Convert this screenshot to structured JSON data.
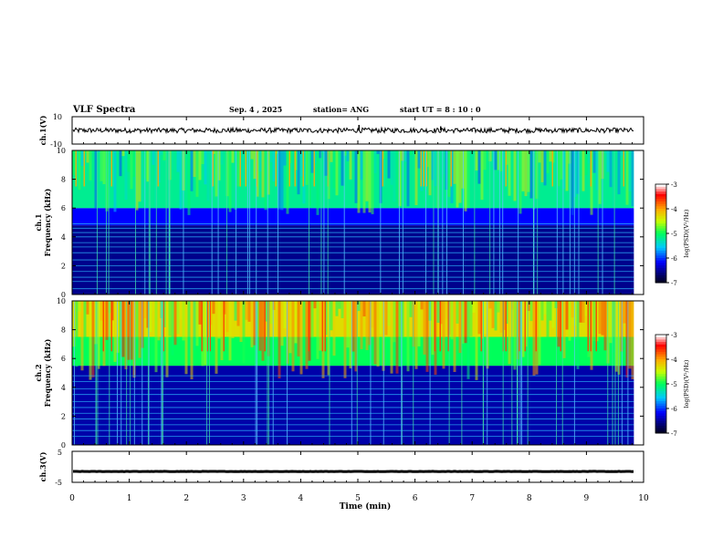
{
  "header": {
    "title": "VLF Spectra",
    "date": "Sep. 4 , 2025",
    "station": "station= ANG",
    "start_ut": "start UT =  8 : 10 : 0"
  },
  "colorbar": {
    "label": "log(PSD)(V²/Hz)",
    "ticks": [
      "-3",
      "-4",
      "-5",
      "-6",
      "-7"
    ],
    "colors": [
      "#ffffff",
      "#ff0000",
      "#ffaa00",
      "#ffff00",
      "#00ff00",
      "#00ffff",
      "#0000ff",
      "#000080"
    ]
  },
  "chart_data": [
    {
      "type": "line",
      "panel": "ch1-waveform",
      "title": "",
      "ylabel": "ch.1(V)",
      "ylim": [
        -10,
        10
      ],
      "yticks": [
        "10",
        "-10"
      ],
      "x_range": [
        0,
        9.83
      ],
      "series": [
        {
          "name": "ch.1",
          "baseline": 0,
          "noise_amplitude": 0.6,
          "spikes": [
            {
              "x": 5.02,
              "y": 4
            },
            {
              "x": 6.45,
              "y": 3
            },
            {
              "x": 7.0,
              "y": -1
            }
          ]
        }
      ]
    },
    {
      "type": "heatmap",
      "panel": "ch1-spectrogram",
      "ylabel_line1": "ch.1",
      "ylabel_line2": "Frequency (kHz)",
      "ylim": [
        0,
        10
      ],
      "yticks": [
        "0",
        "2",
        "4",
        "6",
        "8",
        "10"
      ],
      "x_range": [
        0,
        9.83
      ],
      "color_range": [
        -7,
        -3
      ],
      "background_bands": [
        {
          "from": 0,
          "to": 4.8,
          "level": -6.6
        },
        {
          "from": 4.8,
          "to": 6.0,
          "level": -6.2
        },
        {
          "from": 6.0,
          "to": 10,
          "level": -5.2
        }
      ],
      "horizontal_lines_khz": [
        0.4,
        0.9,
        1.2,
        1.6,
        2.0,
        2.4,
        2.9,
        3.3,
        3.6,
        4.0,
        4.3,
        4.6,
        4.9
      ]
    },
    {
      "type": "heatmap",
      "panel": "ch2-spectrogram",
      "ylabel_line1": "ch.2",
      "ylabel_line2": "Frequency (kHz)",
      "ylim": [
        0,
        10
      ],
      "yticks": [
        "0",
        "2",
        "4",
        "6",
        "8",
        "10"
      ],
      "x_range": [
        0,
        9.83
      ],
      "color_range": [
        -7,
        -3
      ],
      "background_bands": [
        {
          "from": 0,
          "to": 5.5,
          "level": -6.5
        },
        {
          "from": 5.5,
          "to": 7.5,
          "level": -5.0
        },
        {
          "from": 7.5,
          "to": 10,
          "level": -4.3
        }
      ],
      "horizontal_lines_khz": [
        0.6,
        1.0,
        1.4,
        1.8,
        2.2,
        2.6,
        3.0,
        3.5,
        3.9,
        4.4,
        4.8
      ]
    },
    {
      "type": "line",
      "panel": "ch3-waveform",
      "ylabel": "ch.3(V)",
      "ylim": [
        -5,
        5
      ],
      "yticks": [
        "5",
        "-5"
      ],
      "x_range": [
        0,
        9.83
      ],
      "series": [
        {
          "name": "ch.3",
          "baseline": -1.5,
          "noise_amplitude": 0.4
        }
      ]
    }
  ],
  "xaxis": {
    "label": "Time (min)",
    "range": [
      0,
      10
    ],
    "ticks": [
      "0",
      "1",
      "2",
      "3",
      "4",
      "5",
      "6",
      "7",
      "8",
      "9",
      "10"
    ]
  }
}
